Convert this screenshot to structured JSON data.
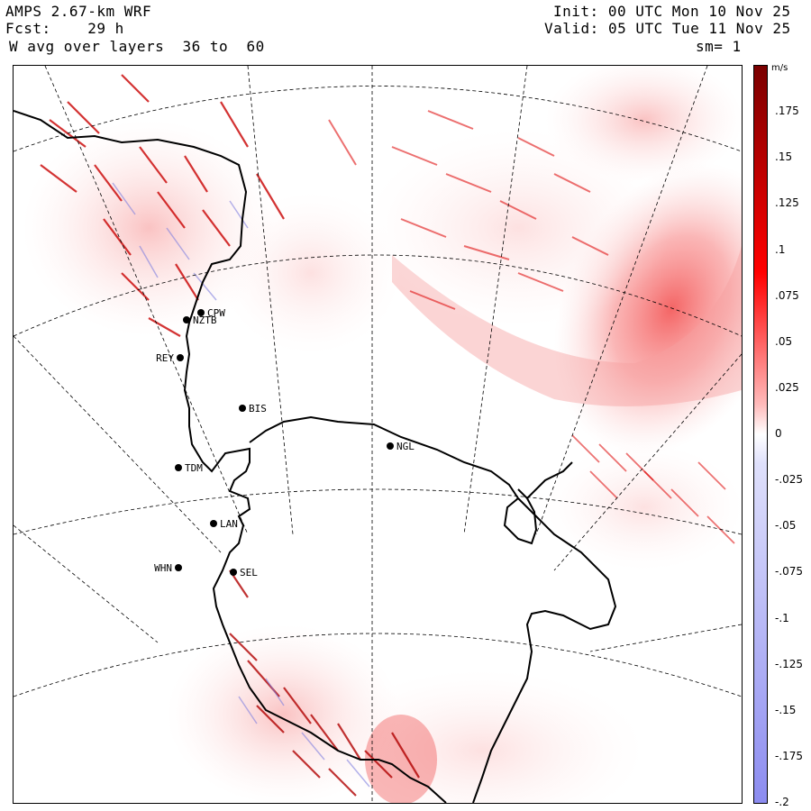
{
  "header": {
    "model": "AMPS 2.67-km WRF",
    "fcst_label": "Fcst:",
    "fcst_value": "29 h",
    "field": "W avg over layers  36 to  60",
    "init_label": "Init:",
    "init_value": "00 UTC Mon 10 Nov 25",
    "valid_label": "Valid:",
    "valid_value": "05 UTC Tue 11 Nov 25",
    "smoothing": "sm= 1"
  },
  "colorbar": {
    "unit": "m/s",
    "ticks": [
      ".175",
      ".15",
      ".125",
      ".1",
      ".075",
      ".05",
      ".025",
      "0",
      "-.025",
      "-.05",
      "-.075",
      "-.1",
      "-.125",
      "-.15",
      "-.175",
      "-.2"
    ],
    "max": 0.2,
    "min": -0.2,
    "colors": {
      "positive_max": "#7a0000",
      "positive_mid": "#ff0000",
      "zero": "#ffffff",
      "negative_max": "#8c8cf0"
    }
  },
  "stations": [
    {
      "id": "CPW"
    },
    {
      "id": "NZTB"
    },
    {
      "id": "REY"
    },
    {
      "id": "BIS"
    },
    {
      "id": "TDM"
    },
    {
      "id": "LAN"
    },
    {
      "id": "WHN"
    },
    {
      "id": "SEL"
    },
    {
      "id": "NGL"
    }
  ]
}
